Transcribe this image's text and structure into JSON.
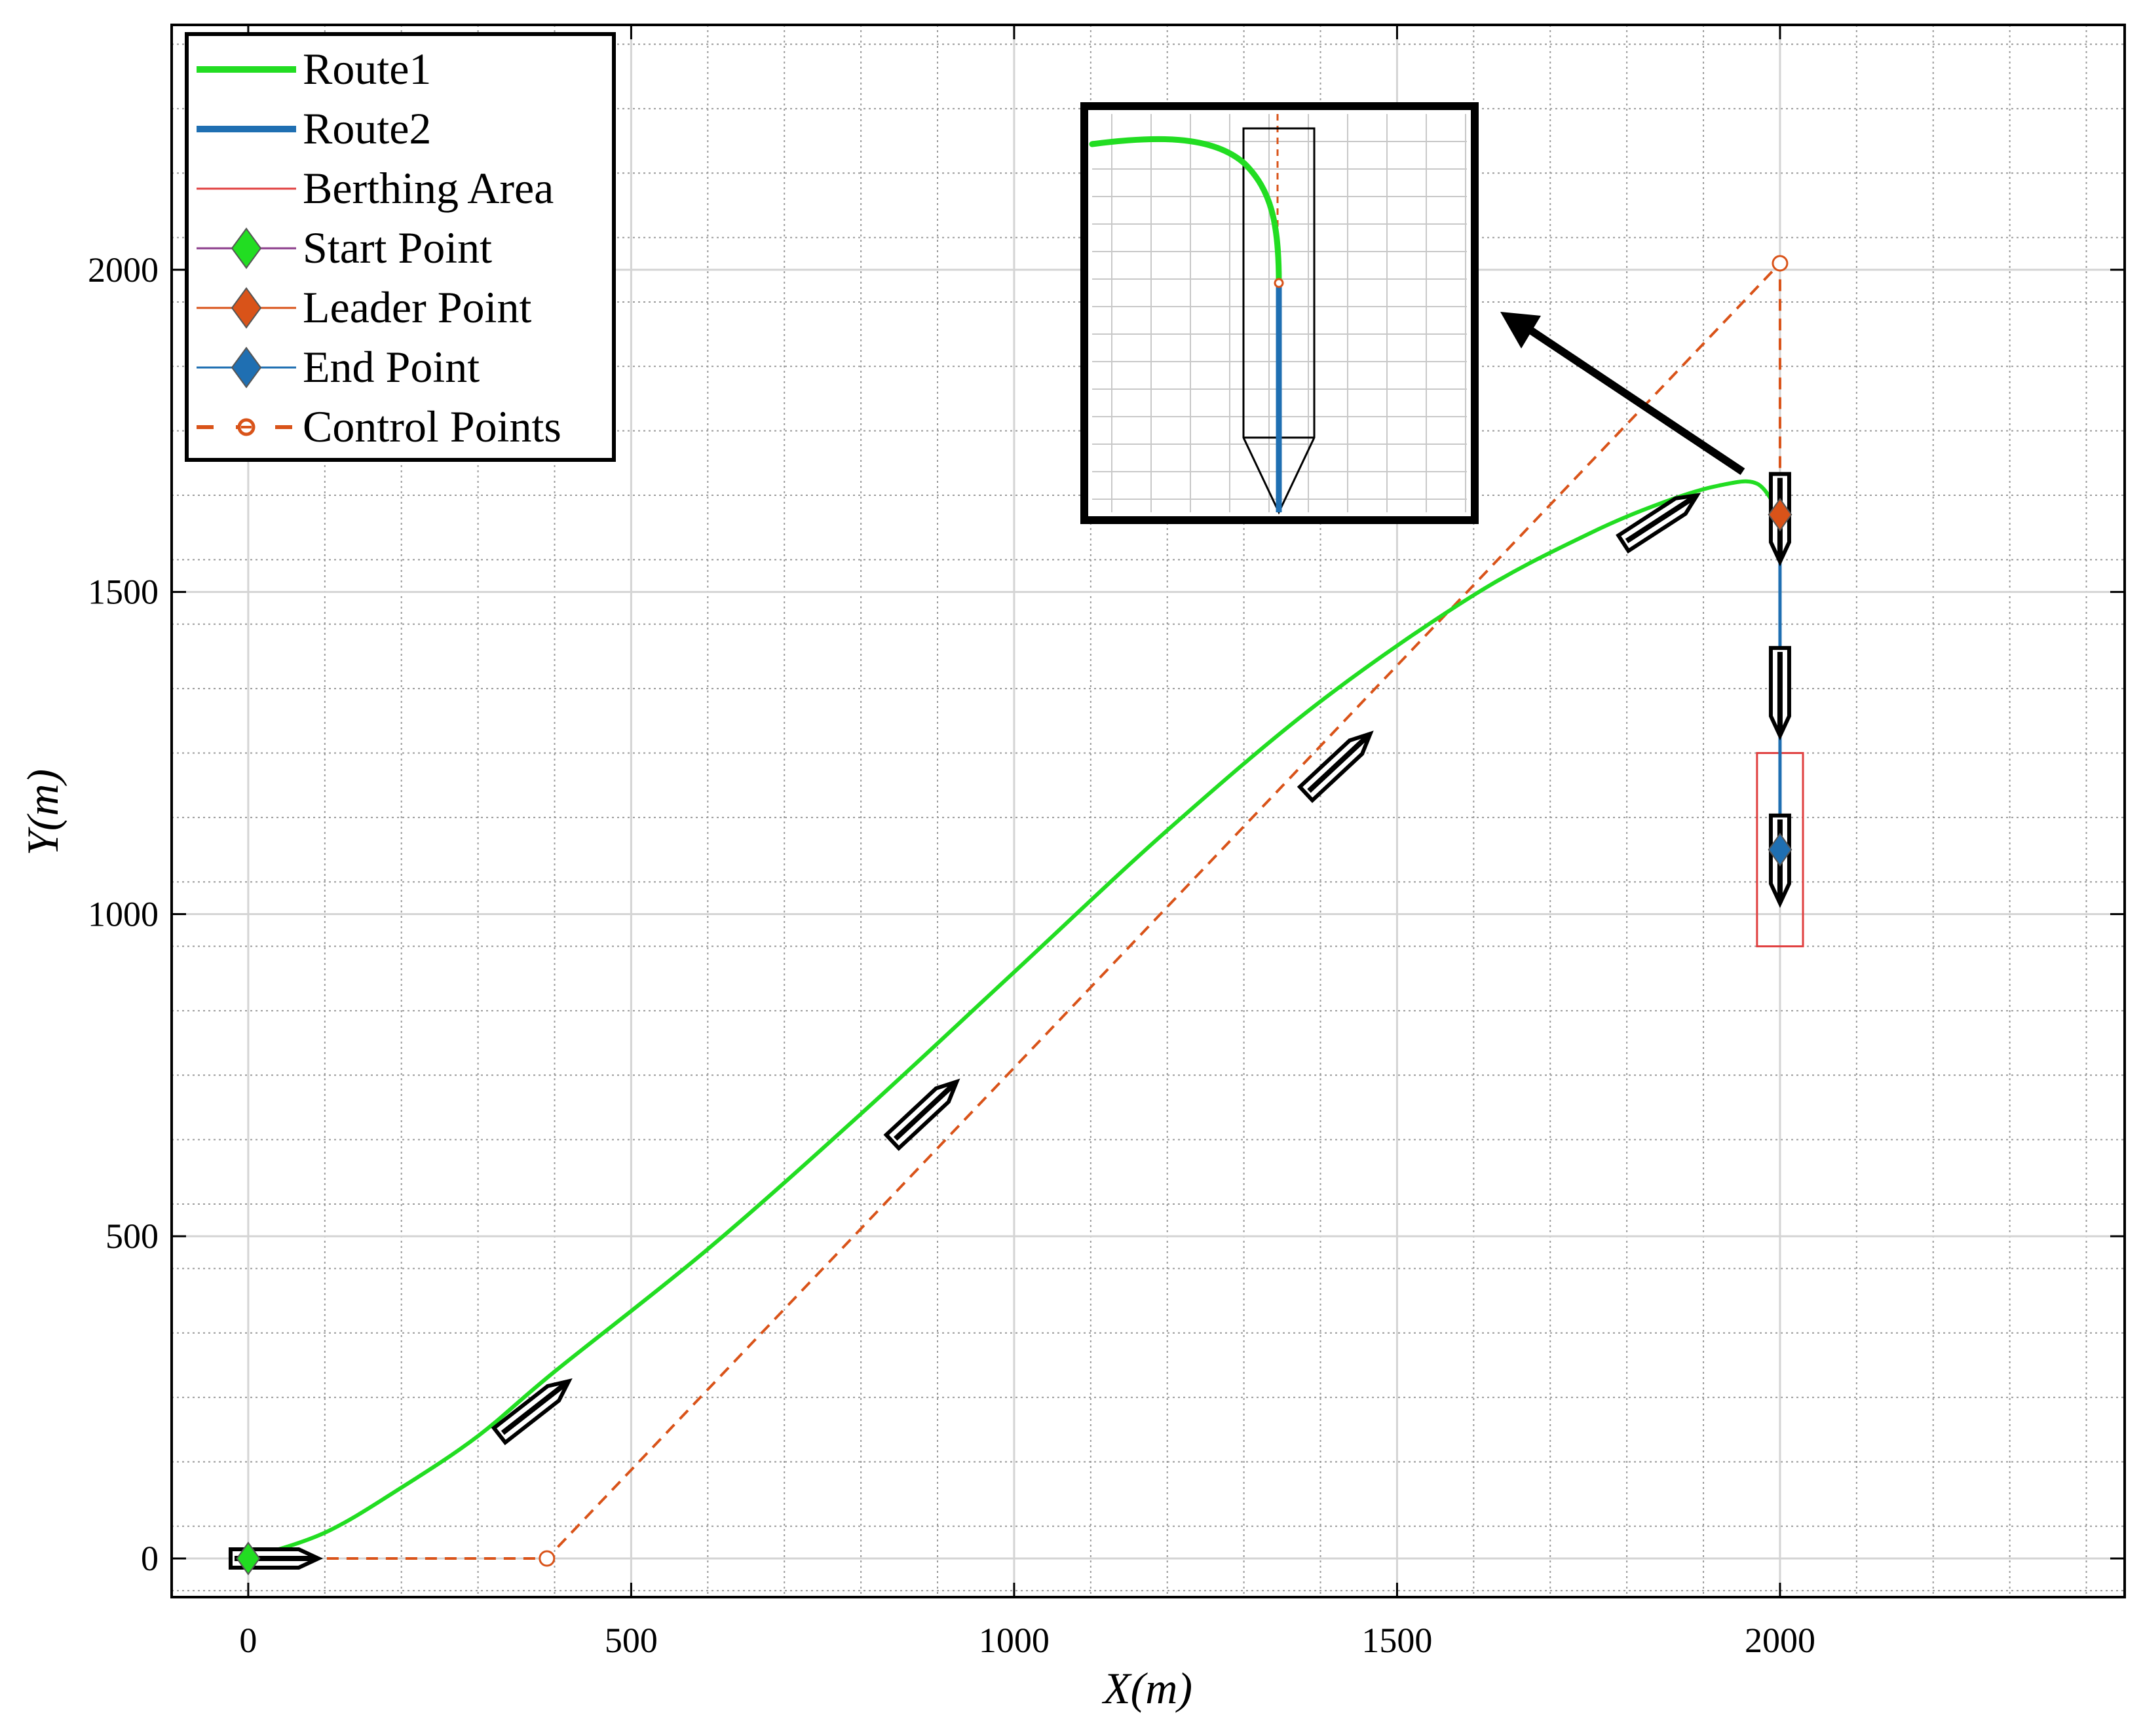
{
  "chart_data": {
    "type": "line",
    "title": "",
    "xlabel": "X(m)",
    "ylabel": "Y(m)",
    "xlim": [
      -100,
      2450
    ],
    "ylim": [
      -60,
      2380
    ],
    "xticks": [
      0,
      500,
      1000,
      1500,
      2000
    ],
    "yticks": [
      0,
      500,
      1000,
      1500,
      2000
    ],
    "xtick_labels": [
      "0",
      "500",
      "1000",
      "1500",
      "2000"
    ],
    "ytick_labels": [
      "0",
      "500",
      "1000",
      "1500",
      "2000"
    ],
    "grid": true,
    "minor_grid": true,
    "legend_position": "top-left",
    "legend": [
      {
        "label": "Route1",
        "kind": "line",
        "color": "#22dd22"
      },
      {
        "label": "Route2",
        "kind": "line",
        "color": "#1f6fb2"
      },
      {
        "label": "Berthing Area",
        "kind": "thin-line",
        "color": "#e04040"
      },
      {
        "label": "Start Point",
        "kind": "diamond",
        "color": "#22dd22"
      },
      {
        "label": "Leader Point",
        "kind": "diamond",
        "color": "#d95319"
      },
      {
        "label": "End Point",
        "kind": "diamond",
        "color": "#1f6fb2"
      },
      {
        "label": "Control Points",
        "kind": "dashed-circle",
        "color": "#d95319"
      }
    ],
    "series": [
      {
        "name": "Route1",
        "color": "#22dd22",
        "x": [
          0,
          100,
          200,
          300,
          400,
          600,
          800,
          1000,
          1200,
          1400,
          1600,
          1750,
          1850,
          1920,
          1970,
          2000
        ],
        "y": [
          0,
          40,
          110,
          190,
          290,
          480,
          690,
          910,
          1130,
          1330,
          1495,
          1590,
          1640,
          1665,
          1668,
          1620
        ]
      },
      {
        "name": "Route2",
        "color": "#1f6fb2",
        "x": [
          2000,
          2000
        ],
        "y": [
          1620,
          1100
        ]
      },
      {
        "name": "Control Points",
        "color": "#d95319",
        "x": [
          0,
          390,
          2000,
          2000
        ],
        "y": [
          0,
          0,
          2010,
          1620
        ]
      }
    ],
    "points": [
      {
        "name": "Start Point",
        "x": 0,
        "y": 0,
        "color": "#22dd22"
      },
      {
        "name": "Leader Point",
        "x": 2000,
        "y": 1620,
        "color": "#d95319"
      },
      {
        "name": "End Point",
        "x": 2000,
        "y": 1100,
        "color": "#1f6fb2"
      }
    ],
    "berthing_area": {
      "x": [
        1970,
        2030
      ],
      "y": [
        950,
        1250
      ],
      "color": "#e04040"
    },
    "ships": [
      {
        "x": 30,
        "y": 0,
        "heading_deg": 0
      },
      {
        "x": 370,
        "y": 230,
        "heading_deg": 38
      },
      {
        "x": 880,
        "y": 690,
        "heading_deg": 43
      },
      {
        "x": 1420,
        "y": 1230,
        "heading_deg": 43
      },
      {
        "x": 1840,
        "y": 1610,
        "heading_deg": 33
      },
      {
        "x": 2000,
        "y": 1620,
        "heading_deg": -90
      },
      {
        "x": 2000,
        "y": 1350,
        "heading_deg": -90
      },
      {
        "x": 2000,
        "y": 1090,
        "heading_deg": -90
      }
    ]
  }
}
